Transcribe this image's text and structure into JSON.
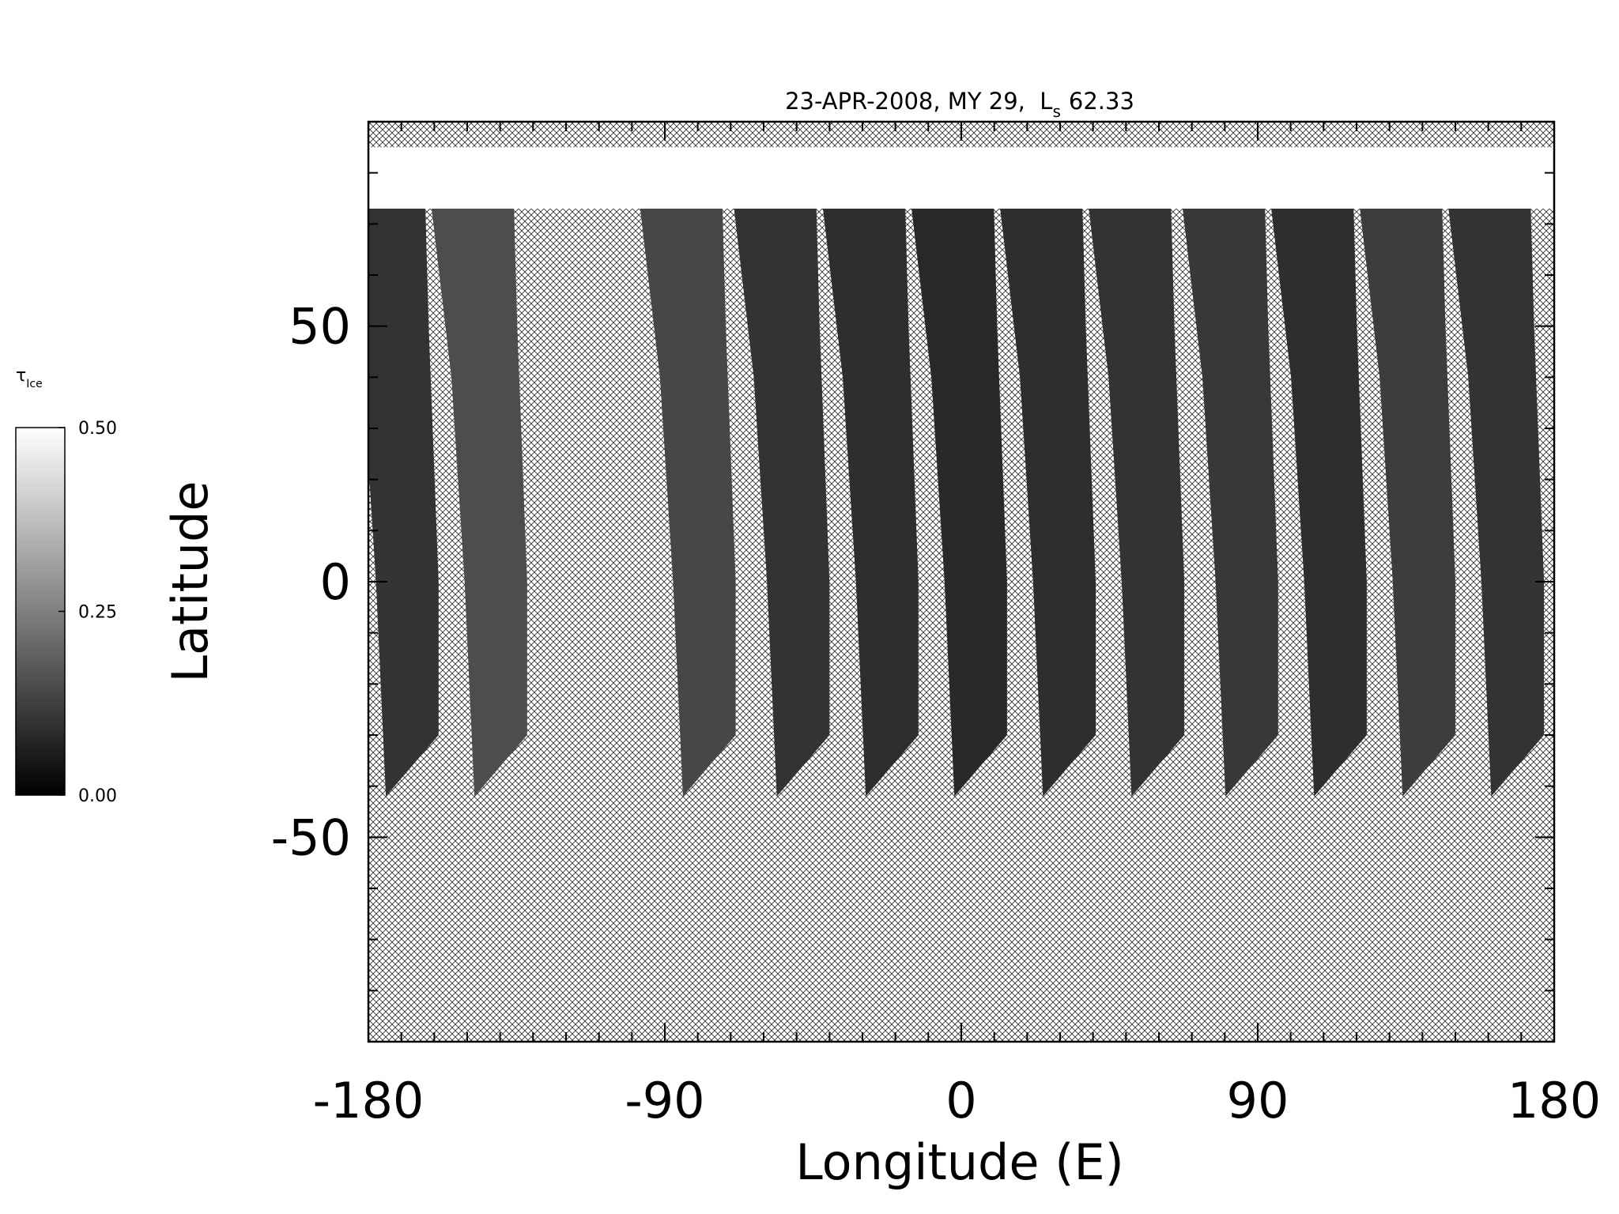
{
  "chart_data": {
    "type": "swath-map",
    "title": "23-APR-2008, MY 29,  L",
    "title_subscript": "s",
    "title_value": "62.33",
    "x_label": "Longitude (E)",
    "y_label": "Latitude",
    "xlim": [
      -180,
      180
    ],
    "xticks": [
      -180,
      -90,
      0,
      90,
      180
    ],
    "x_minor_step": 10,
    "ylim": [
      -90,
      90
    ],
    "yticks": [
      -50,
      0,
      50
    ],
    "y_minor_step": 10,
    "swaths": {
      "x": [
        -166.7,
        -139.8,
        -76.5,
        -48,
        -21,
        5.9,
        32.8,
        59.7,
        88.2,
        115.1,
        142,
        168.9
      ],
      "values": [
        0.1,
        0.15,
        0.14,
        0.1,
        0.09,
        0.08,
        0.09,
        0.1,
        0.11,
        0.09,
        0.12,
        0.1
      ]
    },
    "cap": {
      "lat": [
        73,
        85
      ],
      "value": 0.5
    },
    "colorbar": {
      "label": "τ",
      "label_subscript": "Ice",
      "lim": [
        0,
        0.5
      ],
      "ticks": [
        {
          "value": 0,
          "label": "0.00"
        },
        {
          "value": 0.25,
          "label": "0.25"
        },
        {
          "value": 0.5,
          "label": "0.50"
        }
      ]
    }
  }
}
